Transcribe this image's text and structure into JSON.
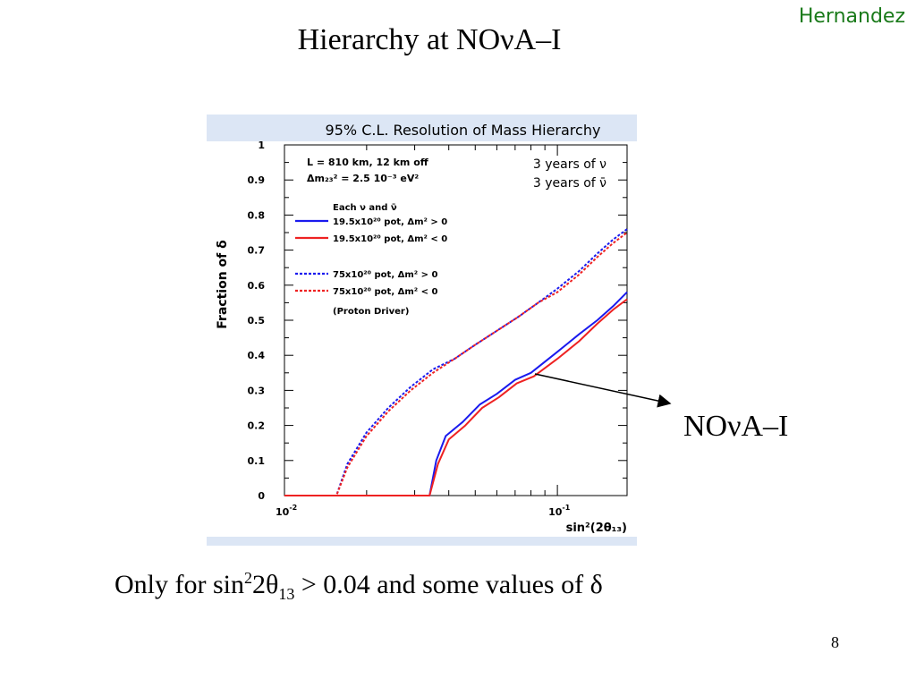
{
  "slide": {
    "author": "Hernandez",
    "title": "Hierarchy at  NOνA–I",
    "callout": "NOνA–I",
    "footnote": {
      "prefix": "Only for sin",
      "sup": "2",
      "mid": "2θ",
      "sub": "13",
      "suffix": " > 0.04  and some values of δ"
    },
    "page_number": "8"
  },
  "chart_data": {
    "type": "line",
    "title": "95% C.L. Resolution of Mass Hierarchy",
    "xlabel": "sin²(2θ₁₃)",
    "ylabel": "Fraction of δ",
    "x_scale": "log",
    "xlim": [
      0.01,
      0.18
    ],
    "ylim": [
      0,
      1
    ],
    "x_ticks": [
      0.01,
      0.1
    ],
    "x_tick_labels": [
      {
        "base": "10",
        "exp": "-2"
      },
      {
        "base": "10",
        "exp": "-1"
      }
    ],
    "y_ticks": [
      0,
      0.1,
      0.2,
      0.3,
      0.4,
      0.5,
      0.6,
      0.7,
      0.8,
      0.9,
      1
    ],
    "y_tick_labels": [
      "0",
      "0.1",
      "0.2",
      "0.3",
      "0.4",
      "0.5",
      "0.6",
      "0.7",
      "0.8",
      "0.9",
      "1"
    ],
    "info_lines": [
      "L = 810 km, 12 km off",
      "Δm₂₃² = 2.5 10⁻³ eV²"
    ],
    "years_lines": [
      "3 years of ν",
      "3 years of ν̄"
    ],
    "legend_header": "Each ν and ν̄",
    "legend_footer": "(Proton Driver)",
    "colors": {
      "blue": "#1a1aee",
      "red": "#ee2222",
      "frame_band": "#dce6f5"
    },
    "series": [
      {
        "name": "19.5x10²⁰ pot, Δm² > 0",
        "color": "#1a1aee",
        "style": "solid",
        "x": [
          0.01,
          0.034,
          0.036,
          0.039,
          0.045,
          0.052,
          0.06,
          0.07,
          0.08,
          0.1,
          0.12,
          0.14,
          0.16,
          0.18
        ],
        "y": [
          0,
          0,
          0.1,
          0.17,
          0.21,
          0.26,
          0.29,
          0.33,
          0.35,
          0.41,
          0.46,
          0.5,
          0.54,
          0.58
        ]
      },
      {
        "name": "19.5x10²⁰ pot, Δm² < 0",
        "color": "#ee2222",
        "style": "solid",
        "x": [
          0.01,
          0.034,
          0.0365,
          0.04,
          0.046,
          0.053,
          0.061,
          0.071,
          0.082,
          0.1,
          0.12,
          0.14,
          0.16,
          0.18
        ],
        "y": [
          0,
          0,
          0.09,
          0.16,
          0.2,
          0.25,
          0.28,
          0.32,
          0.34,
          0.39,
          0.44,
          0.49,
          0.53,
          0.56
        ]
      },
      {
        "name": "75x10²⁰ pot, Δm² > 0",
        "color": "#1a1aee",
        "style": "dotted",
        "x": [
          0.01,
          0.0155,
          0.017,
          0.02,
          0.024,
          0.029,
          0.035,
          0.042,
          0.05,
          0.06,
          0.072,
          0.085,
          0.1,
          0.12,
          0.14,
          0.16,
          0.18
        ],
        "y": [
          0,
          0,
          0.09,
          0.18,
          0.25,
          0.31,
          0.36,
          0.39,
          0.43,
          0.47,
          0.51,
          0.55,
          0.59,
          0.64,
          0.69,
          0.73,
          0.76
        ]
      },
      {
        "name": "75x10²⁰ pot, Δm² < 0",
        "color": "#ee2222",
        "style": "dotted",
        "x": [
          0.01,
          0.0155,
          0.017,
          0.02,
          0.024,
          0.029,
          0.035,
          0.042,
          0.05,
          0.06,
          0.072,
          0.085,
          0.1,
          0.12,
          0.14,
          0.16,
          0.18
        ],
        "y": [
          0,
          0,
          0.08,
          0.17,
          0.24,
          0.3,
          0.35,
          0.39,
          0.43,
          0.47,
          0.51,
          0.55,
          0.58,
          0.63,
          0.68,
          0.72,
          0.75
        ]
      }
    ]
  }
}
